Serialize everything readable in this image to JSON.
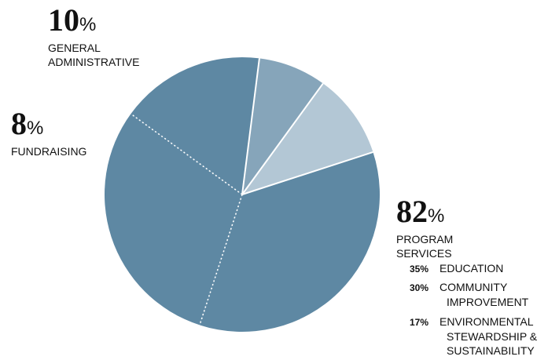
{
  "chart_data": {
    "type": "pie",
    "slices": [
      {
        "label": "EDUCATION",
        "percent": 35,
        "group": "program"
      },
      {
        "label": "COMMUNITY IMPROVEMENT",
        "percent": 30,
        "group": "program"
      },
      {
        "label": "ENVIRONMENTAL STEWARDSHIP & SUSTAINABILITY",
        "percent": 17,
        "group": "program"
      },
      {
        "label": "FUNDRAISING",
        "percent": 8,
        "group": "fundraising"
      },
      {
        "label": "GENERAL ADMINISTRATIVE",
        "percent": 10,
        "group": "admin"
      }
    ],
    "groups": {
      "admin": {
        "value": "10",
        "sign": "%",
        "label_line1": "GENERAL",
        "label_line2": "ADMINISTRATIVE"
      },
      "fundraising": {
        "value": "8",
        "sign": "%",
        "label_line1": "FUNDRAISING"
      },
      "program": {
        "value": "82",
        "sign": "%",
        "label_line1": "PROGRAM",
        "label_line2": "SERVICES"
      }
    },
    "sub_items": [
      {
        "pct": "35%",
        "line1": "EDUCATION"
      },
      {
        "pct": "30%",
        "line1": "COMMUNITY",
        "line2": "IMPROVEMENT"
      },
      {
        "pct": "17%",
        "line1": "ENVIRONMENTAL",
        "line2": "STEWARDSHIP &",
        "line3": "SUSTAINABILITY"
      }
    ],
    "colors": {
      "program": "#5e88a3",
      "fundraising": "#86a5ba",
      "admin": "#b3c7d5",
      "separator": "#ffffff"
    }
  }
}
